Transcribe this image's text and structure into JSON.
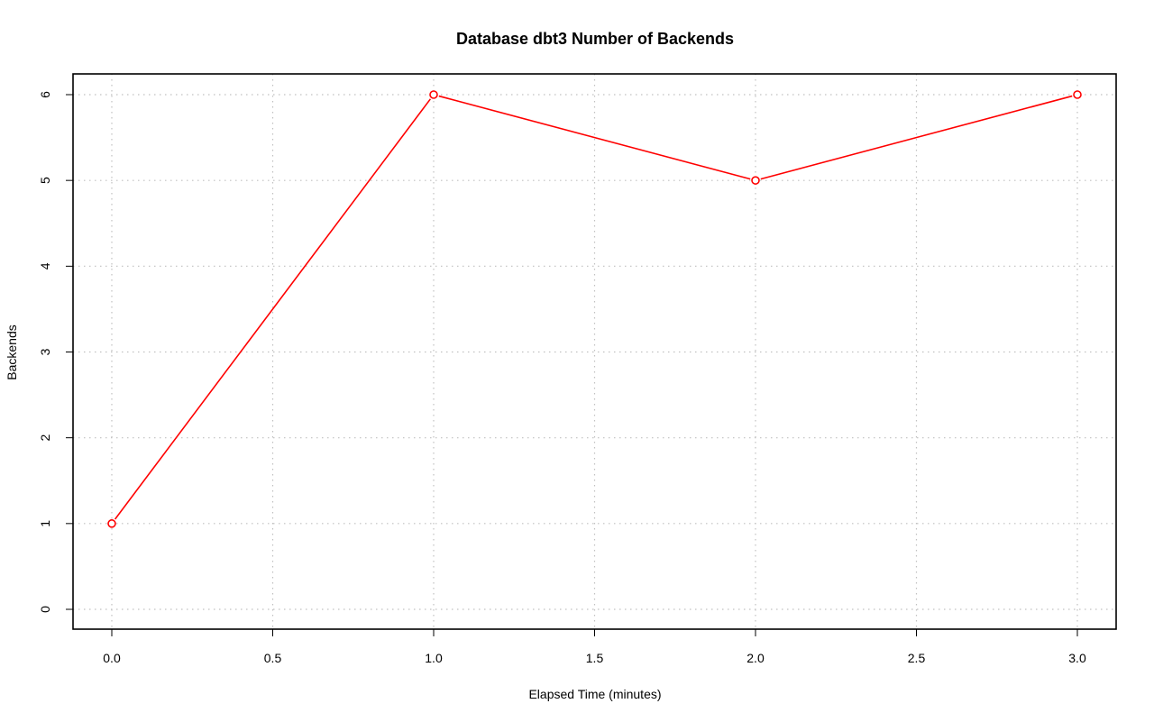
{
  "chart_data": {
    "type": "line",
    "title": "Database dbt3 Number of Backends",
    "xlabel": "Elapsed Time (minutes)",
    "ylabel": "Backends",
    "xlim": [
      0.0,
      3.0
    ],
    "ylim": [
      0,
      6
    ],
    "x_ticks": [
      "0.0",
      "0.5",
      "1.0",
      "1.5",
      "2.0",
      "2.5",
      "3.0"
    ],
    "y_ticks": [
      "0",
      "1",
      "2",
      "3",
      "4",
      "5",
      "6"
    ],
    "grid": true,
    "color": "#ff0000",
    "series": [
      {
        "x": [
          0,
          1,
          2,
          3
        ],
        "y": [
          1,
          6,
          5,
          6
        ]
      }
    ]
  }
}
